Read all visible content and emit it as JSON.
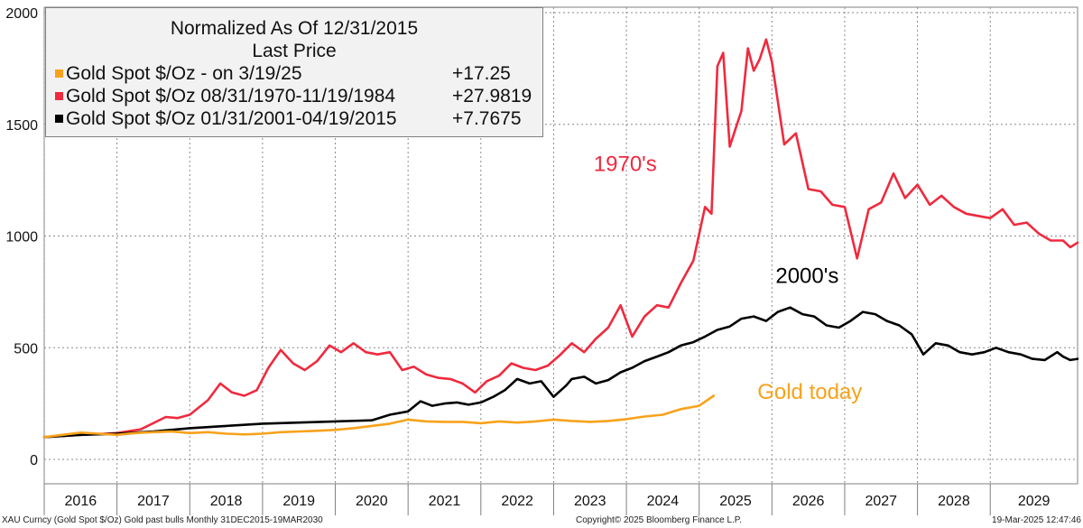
{
  "chart_data": {
    "type": "line",
    "title": "Normalized As Of 12/31/2015",
    "subtitle": "Last Price",
    "xlabel": "",
    "ylabel": "",
    "ylim": [
      0,
      2000
    ],
    "yticks": [
      0,
      500,
      1000,
      1500,
      2000
    ],
    "x_range": [
      2016.0,
      2030.2
    ],
    "x_categories": [
      "2016",
      "2017",
      "2018",
      "2019",
      "2020",
      "2021",
      "2022",
      "2023",
      "2024",
      "2025",
      "2026",
      "2027",
      "2028",
      "2029"
    ],
    "grid": true,
    "legend": "top-left",
    "series": [
      {
        "name": "Gold Spot $/Oz -   on 3/19/25",
        "legend_value": "+17.25",
        "color": "#f7a21b",
        "annotation": "Gold today",
        "x": [
          2016.0,
          2016.25,
          2016.5,
          2016.75,
          2017.0,
          2017.25,
          2017.5,
          2017.75,
          2018.0,
          2018.25,
          2018.5,
          2018.75,
          2019.0,
          2019.25,
          2019.5,
          2019.75,
          2020.0,
          2020.25,
          2020.5,
          2020.75,
          2021.0,
          2021.25,
          2021.5,
          2021.75,
          2022.0,
          2022.25,
          2022.5,
          2022.75,
          2023.0,
          2023.25,
          2023.5,
          2023.75,
          2024.0,
          2024.25,
          2024.5,
          2024.75,
          2025.0,
          2025.2
        ],
        "y": [
          100,
          110,
          120,
          115,
          110,
          118,
          122,
          125,
          118,
          122,
          115,
          112,
          115,
          122,
          125,
          128,
          132,
          140,
          150,
          160,
          178,
          170,
          168,
          168,
          162,
          170,
          165,
          170,
          178,
          172,
          168,
          172,
          180,
          192,
          200,
          225,
          240,
          285
        ]
      },
      {
        "name": "Gold Spot $/Oz 08/31/1970-11/19/1984",
        "legend_value": "+27.9819",
        "color": "#ef2a3e",
        "annotation": "1970's",
        "x": [
          2016.0,
          2016.5,
          2017.0,
          2017.33,
          2017.67,
          2017.83,
          2018.0,
          2018.25,
          2018.42,
          2018.58,
          2018.75,
          2018.92,
          2019.08,
          2019.25,
          2019.42,
          2019.58,
          2019.75,
          2019.92,
          2020.08,
          2020.25,
          2020.42,
          2020.58,
          2020.75,
          2020.92,
          2021.08,
          2021.25,
          2021.42,
          2021.58,
          2021.75,
          2021.92,
          2022.08,
          2022.25,
          2022.42,
          2022.58,
          2022.75,
          2022.92,
          2023.08,
          2023.25,
          2023.42,
          2023.58,
          2023.75,
          2023.92,
          2024.08,
          2024.25,
          2024.42,
          2024.58,
          2024.75,
          2024.92,
          2025.08,
          2025.17,
          2025.25,
          2025.33,
          2025.42,
          2025.5,
          2025.58,
          2025.67,
          2025.75,
          2025.83,
          2025.92,
          2026.0,
          2026.17,
          2026.33,
          2026.5,
          2026.67,
          2026.83,
          2027.0,
          2027.17,
          2027.33,
          2027.5,
          2027.67,
          2027.83,
          2028.0,
          2028.17,
          2028.33,
          2028.5,
          2028.67,
          2028.83,
          2029.0,
          2029.17,
          2029.33,
          2029.5,
          2029.67,
          2029.83,
          2030.0,
          2030.1,
          2030.2
        ],
        "y": [
          100,
          110,
          118,
          135,
          190,
          185,
          200,
          265,
          340,
          300,
          285,
          310,
          410,
          490,
          430,
          400,
          440,
          510,
          480,
          520,
          480,
          470,
          480,
          400,
          415,
          380,
          365,
          360,
          340,
          300,
          350,
          375,
          430,
          410,
          400,
          420,
          465,
          520,
          480,
          540,
          590,
          690,
          550,
          640,
          690,
          680,
          790,
          890,
          1130,
          1100,
          1760,
          1820,
          1400,
          1480,
          1560,
          1840,
          1740,
          1790,
          1880,
          1780,
          1410,
          1460,
          1210,
          1200,
          1140,
          1130,
          900,
          1120,
          1150,
          1280,
          1170,
          1230,
          1140,
          1180,
          1130,
          1100,
          1090,
          1080,
          1120,
          1050,
          1060,
          1010,
          980,
          980,
          950,
          970
        ]
      },
      {
        "name": "Gold Spot $/Oz 01/31/2001-04/19/2015",
        "legend_value": "+7.7675",
        "color": "#000000",
        "annotation": "2000's",
        "x": [
          2016.0,
          2016.5,
          2017.0,
          2017.5,
          2018.0,
          2018.5,
          2019.0,
          2019.5,
          2020.0,
          2020.5,
          2020.75,
          2021.0,
          2021.17,
          2021.33,
          2021.5,
          2021.67,
          2021.83,
          2022.0,
          2022.17,
          2022.33,
          2022.5,
          2022.67,
          2022.83,
          2023.0,
          2023.17,
          2023.25,
          2023.42,
          2023.58,
          2023.75,
          2023.92,
          2024.08,
          2024.25,
          2024.42,
          2024.58,
          2024.75,
          2024.92,
          2025.08,
          2025.25,
          2025.42,
          2025.58,
          2025.75,
          2025.92,
          2026.08,
          2026.25,
          2026.42,
          2026.58,
          2026.75,
          2026.92,
          2027.08,
          2027.25,
          2027.42,
          2027.58,
          2027.75,
          2027.92,
          2028.08,
          2028.25,
          2028.42,
          2028.58,
          2028.75,
          2028.92,
          2029.08,
          2029.25,
          2029.42,
          2029.58,
          2029.75,
          2029.92,
          2030.0,
          2030.1,
          2030.2
        ],
        "y": [
          100,
          110,
          115,
          125,
          140,
          150,
          160,
          165,
          170,
          175,
          200,
          215,
          260,
          240,
          250,
          255,
          245,
          255,
          280,
          310,
          360,
          340,
          350,
          280,
          330,
          360,
          370,
          340,
          355,
          390,
          410,
          440,
          460,
          480,
          510,
          525,
          550,
          580,
          595,
          630,
          640,
          620,
          660,
          680,
          650,
          640,
          600,
          590,
          620,
          660,
          650,
          620,
          600,
          560,
          470,
          520,
          510,
          480,
          470,
          480,
          500,
          480,
          470,
          450,
          445,
          480,
          460,
          445,
          450
        ]
      }
    ]
  },
  "footer": {
    "left": "XAU Curncy (Gold Spot   $/Oz) Gold past bulls  Monthly 31DEC2015-19MAR2030",
    "center": "Copyright© 2025 Bloomberg Finance L.P.",
    "right": "19-Mar-2025 12:47:46"
  }
}
